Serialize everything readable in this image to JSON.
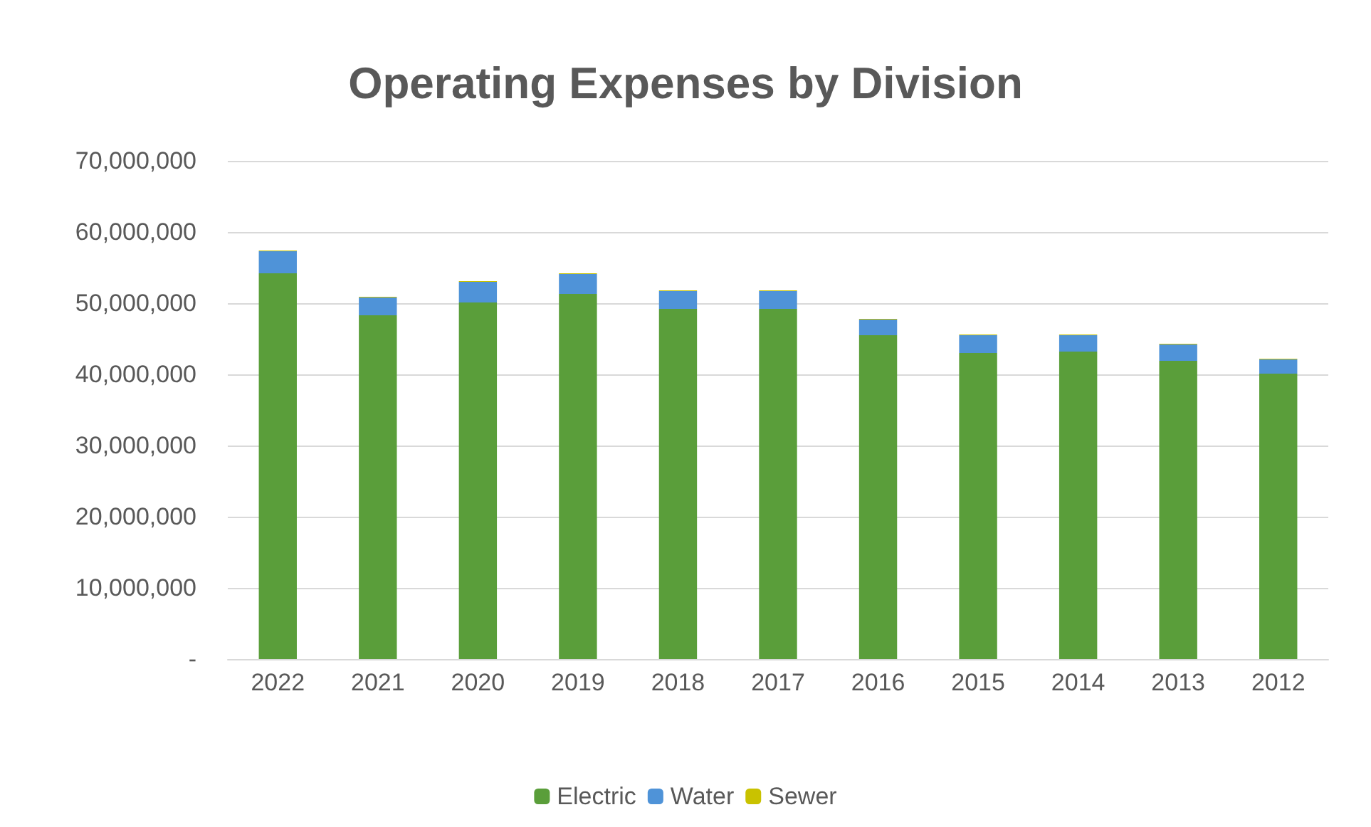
{
  "chart_data": {
    "type": "bar",
    "title": "Operating Expenses by Division",
    "categories": [
      "2022",
      "2021",
      "2020",
      "2019",
      "2018",
      "2017",
      "2016",
      "2015",
      "2014",
      "2013",
      "2012"
    ],
    "stacked": true,
    "series": [
      {
        "name": "Electric",
        "color": "#5a9e3a",
        "values": [
          54200000,
          48300000,
          50100000,
          51300000,
          49200000,
          49200000,
          45500000,
          43000000,
          43200000,
          41900000,
          40100000
        ]
      },
      {
        "name": "Water",
        "color": "#4f93d8",
        "values": [
          3100000,
          2500000,
          2900000,
          2800000,
          2500000,
          2500000,
          2200000,
          2500000,
          2300000,
          2300000,
          2000000
        ]
      },
      {
        "name": "Sewer",
        "color": "#c9c200",
        "values": [
          100000,
          100000,
          100000,
          100000,
          100000,
          100000,
          100000,
          100000,
          100000,
          100000,
          100000
        ]
      }
    ],
    "ylim": [
      0,
      70000000
    ],
    "yticks": [
      {
        "value": 0,
        "label": "-"
      },
      {
        "value": 10000000,
        "label": "10,000,000"
      },
      {
        "value": 20000000,
        "label": "20,000,000"
      },
      {
        "value": 30000000,
        "label": "30,000,000"
      },
      {
        "value": 40000000,
        "label": "40,000,000"
      },
      {
        "value": 50000000,
        "label": "50,000,000"
      },
      {
        "value": 60000000,
        "label": "60,000,000"
      },
      {
        "value": 70000000,
        "label": "70,000,000"
      }
    ],
    "grid": "y",
    "legend": "bottom"
  }
}
